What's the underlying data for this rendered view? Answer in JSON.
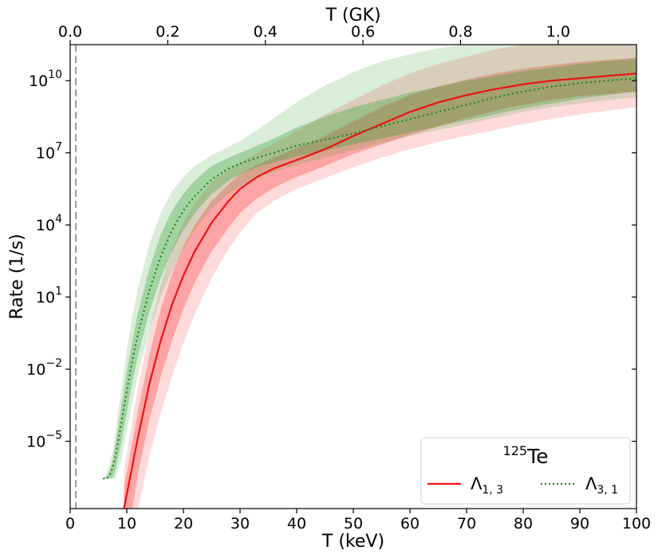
{
  "chart_data": {
    "type": "line",
    "xlabel": "T (keV)",
    "x2label": "T (GK)",
    "ylabel": "Rate (1/s)",
    "xlim": [
      0,
      100
    ],
    "ylim_log10": [
      -7.8,
      11.5
    ],
    "yscale": "log",
    "grid": false,
    "x_ticks": [
      0,
      10,
      20,
      30,
      40,
      50,
      60,
      70,
      80,
      90,
      100
    ],
    "x2_ticks": [
      "0.0",
      "0.2",
      "0.4",
      "0.6",
      "0.8",
      "1.0"
    ],
    "x2_tick_values_GK": [
      0.0,
      0.2,
      0.4,
      0.6,
      0.8,
      1.0
    ],
    "y_ticks_exp": [
      "10",
      "7",
      "4",
      "1",
      "−2",
      "−5"
    ],
    "y_tick_values_log10": [
      10,
      7,
      4,
      1,
      -2,
      -5
    ],
    "vline_x": 1,
    "legend": {
      "placement": "lower-right",
      "title_prefix": "125",
      "title_main": "Te",
      "entries": [
        {
          "sym": "Λ",
          "sub": "1, 3"
        },
        {
          "sym": "Λ",
          "sub": "3, 1"
        }
      ]
    },
    "series": [
      {
        "color": "#ee1111",
        "linestyle": "solid",
        "x": [
          9.5,
          10,
          11,
          12,
          14,
          16,
          18,
          20,
          22,
          25,
          28,
          30,
          33,
          36,
          40,
          45,
          50,
          55,
          60,
          65,
          70,
          75,
          80,
          85,
          90,
          95,
          100
        ],
        "log10_y": [
          -7.8,
          -7.2,
          -6.0,
          -4.8,
          -2.6,
          -0.8,
          0.7,
          1.9,
          2.9,
          4.1,
          5.0,
          5.5,
          6.0,
          6.35,
          6.7,
          7.15,
          7.7,
          8.2,
          8.7,
          9.1,
          9.4,
          9.65,
          9.85,
          10.0,
          10.1,
          10.2,
          10.3
        ],
        "band_inner_hi": [
          -6.9,
          -6.3,
          -5.0,
          -3.7,
          -1.4,
          0.5,
          2.0,
          3.1,
          4.0,
          5.0,
          5.7,
          6.1,
          6.5,
          6.8,
          7.2,
          7.7,
          8.3,
          8.9,
          9.4,
          9.75,
          10.05,
          10.3,
          10.5,
          10.65,
          10.78,
          10.88,
          10.95
        ],
        "band_inner_lo": [
          -7.8,
          -7.8,
          -7.8,
          -6.3,
          -4.1,
          -2.3,
          -0.8,
          0.5,
          1.6,
          2.9,
          3.9,
          4.5,
          5.1,
          5.55,
          6.0,
          6.45,
          6.95,
          7.35,
          7.75,
          8.1,
          8.45,
          8.75,
          9.0,
          9.2,
          9.35,
          9.45,
          9.55
        ],
        "band_outer_hi": [
          -6.2,
          -5.5,
          -4.1,
          -2.7,
          -0.4,
          1.5,
          3.0,
          4.1,
          4.9,
          5.8,
          6.3,
          6.6,
          7.0,
          7.4,
          7.9,
          8.6,
          9.2,
          9.8,
          10.3,
          10.7,
          11.0,
          11.3,
          11.5,
          11.5,
          11.5,
          11.5,
          11.5
        ],
        "band_outer_lo": [
          -7.8,
          -7.8,
          -7.8,
          -7.8,
          -5.6,
          -3.8,
          -2.3,
          -0.9,
          0.3,
          1.8,
          3.0,
          3.7,
          4.5,
          5.0,
          5.5,
          5.95,
          6.4,
          6.8,
          7.15,
          7.45,
          7.7,
          7.95,
          8.2,
          8.4,
          8.6,
          8.75,
          8.9
        ]
      },
      {
        "color": "#228822",
        "linestyle": "dotted",
        "x": [
          5.8,
          6.5,
          7,
          7.5,
          8,
          9,
          10,
          11,
          12,
          14,
          16,
          18,
          20,
          22,
          25,
          28,
          30,
          33,
          36,
          40,
          45,
          50,
          55,
          60,
          65,
          70,
          75,
          80,
          85,
          90,
          95,
          100
        ],
        "log10_y": [
          -6.55,
          -6.55,
          -6.4,
          -6.1,
          -5.6,
          -4.3,
          -2.9,
          -1.6,
          -0.5,
          1.3,
          2.7,
          3.8,
          4.6,
          5.2,
          5.9,
          6.35,
          6.55,
          6.8,
          7.0,
          7.3,
          7.55,
          7.8,
          8.1,
          8.4,
          8.7,
          9.0,
          9.3,
          9.55,
          9.75,
          9.9,
          10.0,
          10.1
        ],
        "band_inner_hi": [
          -6.55,
          -6.45,
          -6.2,
          -5.8,
          -5.1,
          -3.6,
          -2.1,
          -0.8,
          0.4,
          2.2,
          3.6,
          4.6,
          5.3,
          5.85,
          6.45,
          6.8,
          7.0,
          7.3,
          7.6,
          8.05,
          8.5,
          8.9,
          9.2,
          9.5,
          9.75,
          10.0,
          10.2,
          10.4,
          10.55,
          10.7,
          10.82,
          10.92
        ],
        "band_inner_lo": [
          -6.55,
          -6.55,
          -6.55,
          -6.5,
          -6.2,
          -5.1,
          -3.8,
          -2.5,
          -1.4,
          0.4,
          1.8,
          2.9,
          3.8,
          4.5,
          5.3,
          5.85,
          6.1,
          6.4,
          6.6,
          6.85,
          7.1,
          7.35,
          7.6,
          7.85,
          8.1,
          8.35,
          8.6,
          8.85,
          9.05,
          9.25,
          9.4,
          9.55
        ],
        "band_outer_hi": [
          -6.55,
          -6.3,
          -5.9,
          -5.4,
          -4.6,
          -2.9,
          -1.2,
          0.2,
          1.4,
          3.2,
          4.5,
          5.4,
          6.0,
          6.45,
          6.9,
          7.25,
          7.5,
          7.95,
          8.45,
          9.1,
          9.8,
          10.35,
          10.8,
          11.1,
          11.35,
          11.5,
          11.5,
          11.5,
          11.5,
          11.5,
          11.5,
          11.5
        ],
        "band_outer_lo": [
          -6.55,
          -6.55,
          -6.55,
          -6.55,
          -6.55,
          -5.8,
          -4.6,
          -3.3,
          -2.2,
          -0.4,
          1.0,
          2.1,
          3.0,
          3.8,
          4.7,
          5.3,
          5.6,
          5.95,
          6.2,
          6.5,
          6.8,
          7.1,
          7.4,
          7.7,
          7.95,
          8.2,
          8.45,
          8.7,
          8.9,
          9.05,
          9.2,
          9.3
        ]
      }
    ]
  }
}
